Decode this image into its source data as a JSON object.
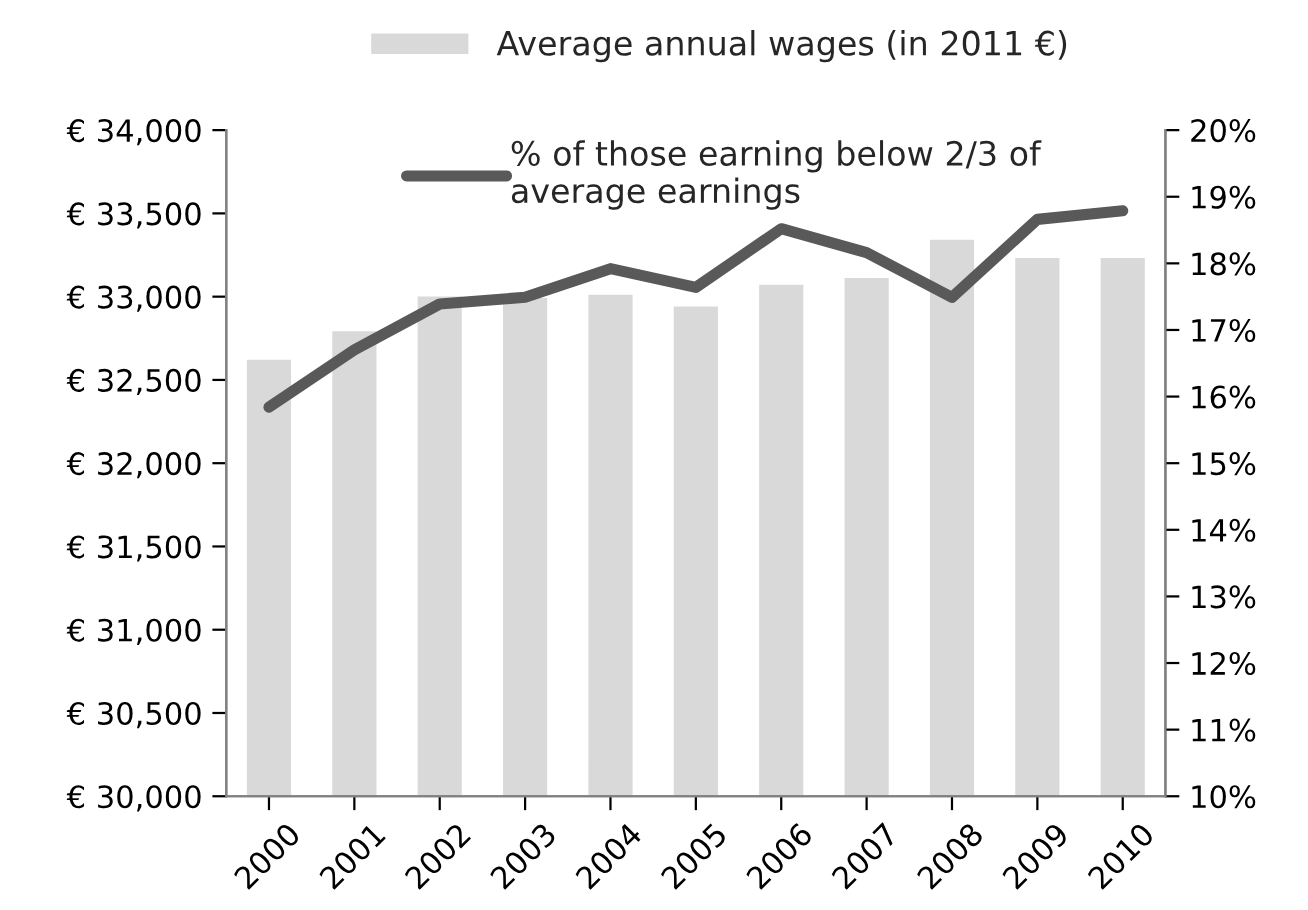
{
  "chart_data": {
    "type": "bar",
    "categories": [
      "2000",
      "2001",
      "2002",
      "2003",
      "2004",
      "2005",
      "2006",
      "2007",
      "2008",
      "2009",
      "2010"
    ],
    "series": [
      {
        "name": "Average annual wages (in 2011 €)",
        "color": "#d9d9d9",
        "values": [
          32630,
          32800,
          33010,
          33000,
          33020,
          32950,
          33080,
          33120,
          33350,
          33240,
          33240
        ]
      },
      {
        "name": "% of those earning below 2/3 of average earnings",
        "type": "line",
        "axis": "y2",
        "color": "#595959",
        "values": [
          15.84,
          16.7,
          17.39,
          17.49,
          17.92,
          17.64,
          18.52,
          18.16,
          17.49,
          18.66,
          18.79
        ]
      }
    ],
    "ylim": [
      30000,
      34000
    ],
    "yticks": [
      {
        "value": 30000,
        "label": "€ 30,000"
      },
      {
        "value": 30500,
        "label": "€ 30,500"
      },
      {
        "value": 31000,
        "label": "€ 31,000"
      },
      {
        "value": 31500,
        "label": "€ 31,500"
      },
      {
        "value": 32000,
        "label": "€ 32,000"
      },
      {
        "value": 32500,
        "label": "€ 32,500"
      },
      {
        "value": 33000,
        "label": "€ 33,000"
      },
      {
        "value": 33500,
        "label": "€ 33,500"
      },
      {
        "value": 34000,
        "label": "€ 34,000"
      }
    ],
    "y2lim": [
      10,
      20
    ],
    "y2ticks": [
      {
        "value": 10,
        "label": "10%"
      },
      {
        "value": 11,
        "label": "11%"
      },
      {
        "value": 12,
        "label": "12%"
      },
      {
        "value": 13,
        "label": "13%"
      },
      {
        "value": 14,
        "label": "14%"
      },
      {
        "value": 15,
        "label": "15%"
      },
      {
        "value": 16,
        "label": "16%"
      },
      {
        "value": 17,
        "label": "17%"
      },
      {
        "value": 18,
        "label": "18%"
      },
      {
        "value": 19,
        "label": "19%"
      },
      {
        "value": 20,
        "label": "20%"
      }
    ],
    "grid": false,
    "legend": "top",
    "marker": "none",
    "line_style": "solid"
  }
}
